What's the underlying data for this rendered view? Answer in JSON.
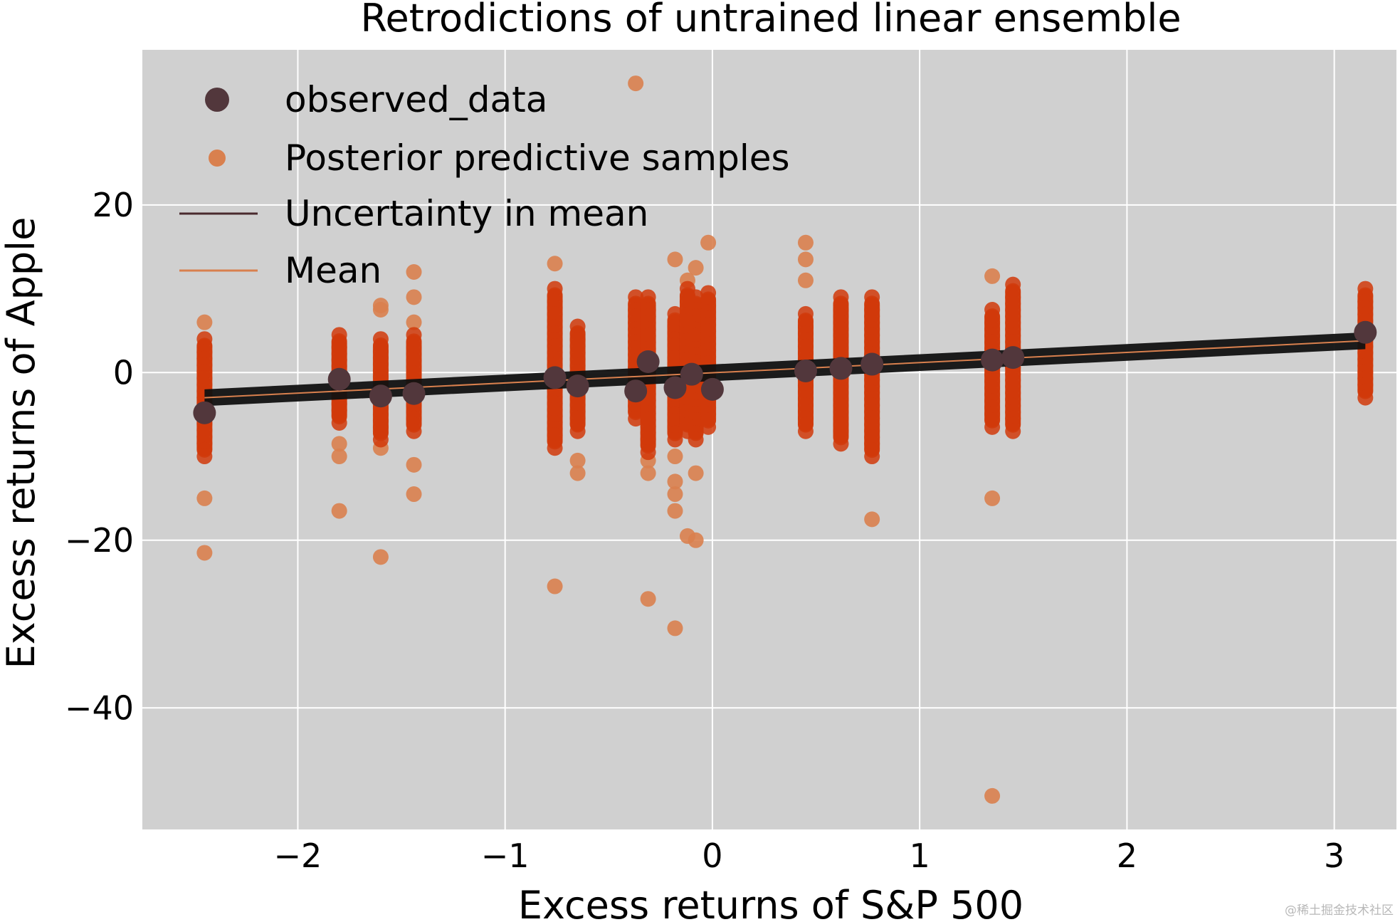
{
  "chart_data": {
    "type": "scatter",
    "title": "Retrodictions of untrained linear ensemble",
    "xlabel": "Excess returns of S&P 500",
    "ylabel": "Excess returns of Apple",
    "xlim": [
      -2.75,
      3.3
    ],
    "ylim": [
      -54.5,
      38.5
    ],
    "x_ticks": [
      -2,
      -1,
      0,
      1,
      2,
      3
    ],
    "x_tick_labels": [
      "−2",
      "−1",
      "0",
      "1",
      "2",
      "3"
    ],
    "y_ticks": [
      -40,
      -20,
      0,
      20
    ],
    "y_tick_labels": [
      "−40",
      "−20",
      "0",
      "20"
    ],
    "grid": true,
    "legend_position": "top-left",
    "legend": [
      {
        "label": "observed_data",
        "marker": "big-dot"
      },
      {
        "label": "Posterior predictive samples",
        "marker": "dot"
      },
      {
        "label": "Uncertainty in mean",
        "marker": "line"
      },
      {
        "label": "Mean",
        "marker": "line"
      }
    ],
    "colors": {
      "observed": "#52373c",
      "posterior_dense": "#d13a0a",
      "posterior_outlier": "#d9804e",
      "uncertainty": "#111111",
      "mean": "#d9804e",
      "axes_bg": "#d0d0d0",
      "grid": "#ffffff"
    },
    "observed_data": {
      "x": [
        -2.45,
        -1.8,
        -1.6,
        -1.44,
        -0.76,
        -0.65,
        -0.37,
        -0.31,
        -0.18,
        -0.1,
        0.0,
        0.45,
        0.62,
        0.77,
        1.35,
        1.45,
        3.15
      ],
      "y": [
        -4.8,
        -0.8,
        -2.8,
        -2.5,
        -0.6,
        -1.6,
        -2.2,
        1.3,
        -1.8,
        -0.2,
        -2.0,
        0.2,
        0.5,
        1.0,
        1.5,
        1.8,
        4.8
      ]
    },
    "posterior_predictive_clusters": [
      {
        "x": -2.45,
        "dense_range": [
          -10,
          4
        ],
        "outliers": [
          6,
          -15,
          -21.5
        ]
      },
      {
        "x": -1.8,
        "dense_range": [
          -6,
          4.5
        ],
        "outliers": [
          -8.5,
          -10,
          -16.5
        ]
      },
      {
        "x": -1.6,
        "dense_range": [
          -8,
          4
        ],
        "outliers": [
          8,
          7.5,
          -9,
          -22
        ]
      },
      {
        "x": -1.44,
        "dense_range": [
          -7,
          4.5
        ],
        "outliers": [
          12,
          9,
          6,
          -11,
          -14.5
        ]
      },
      {
        "x": -0.76,
        "dense_range": [
          -9,
          10
        ],
        "outliers": [
          13,
          -25.5
        ]
      },
      {
        "x": -0.65,
        "dense_range": [
          -7,
          5.5
        ],
        "outliers": [
          -10.5,
          -12
        ]
      },
      {
        "x": -0.37,
        "dense_range": [
          -5.5,
          9
        ],
        "outliers": [
          34.5
        ]
      },
      {
        "x": -0.31,
        "dense_range": [
          -9.5,
          9
        ],
        "outliers": [
          -10.5,
          -12,
          -27
        ]
      },
      {
        "x": -0.18,
        "dense_range": [
          -8,
          7
        ],
        "outliers": [
          13.5,
          -10,
          -13,
          -14.5,
          -16.5,
          -30.5
        ]
      },
      {
        "x": -0.12,
        "dense_range": [
          -7,
          10
        ],
        "outliers": [
          11,
          -19.5
        ]
      },
      {
        "x": -0.08,
        "dense_range": [
          -8,
          9
        ],
        "outliers": [
          12.5,
          -12,
          -20
        ]
      },
      {
        "x": -0.02,
        "dense_range": [
          -6.5,
          9.5
        ],
        "outliers": [
          15.5
        ]
      },
      {
        "x": 0.45,
        "dense_range": [
          -7,
          7
        ],
        "outliers": [
          15.5,
          13.5,
          11
        ]
      },
      {
        "x": 0.62,
        "dense_range": [
          -8.5,
          9
        ],
        "outliers": []
      },
      {
        "x": 0.77,
        "dense_range": [
          -10,
          9
        ],
        "outliers": [
          -17.5
        ]
      },
      {
        "x": 1.35,
        "dense_range": [
          -6.5,
          7.5
        ],
        "outliers": [
          11.5,
          -15,
          -50.5
        ]
      },
      {
        "x": 1.45,
        "dense_range": [
          -7,
          10.5
        ],
        "outliers": []
      },
      {
        "x": 3.15,
        "dense_range": [
          -3,
          10
        ],
        "outliers": []
      }
    ],
    "mean_line": {
      "x": [
        -2.45,
        3.15
      ],
      "y": [
        -3.0,
        3.8
      ]
    },
    "uncertainty_band": {
      "x": [
        -2.45,
        3.15
      ],
      "y_low": [
        -4.0,
        2.8
      ],
      "y_high": [
        -2.0,
        4.8
      ]
    }
  },
  "watermark": "@稀土掘金技术社区"
}
